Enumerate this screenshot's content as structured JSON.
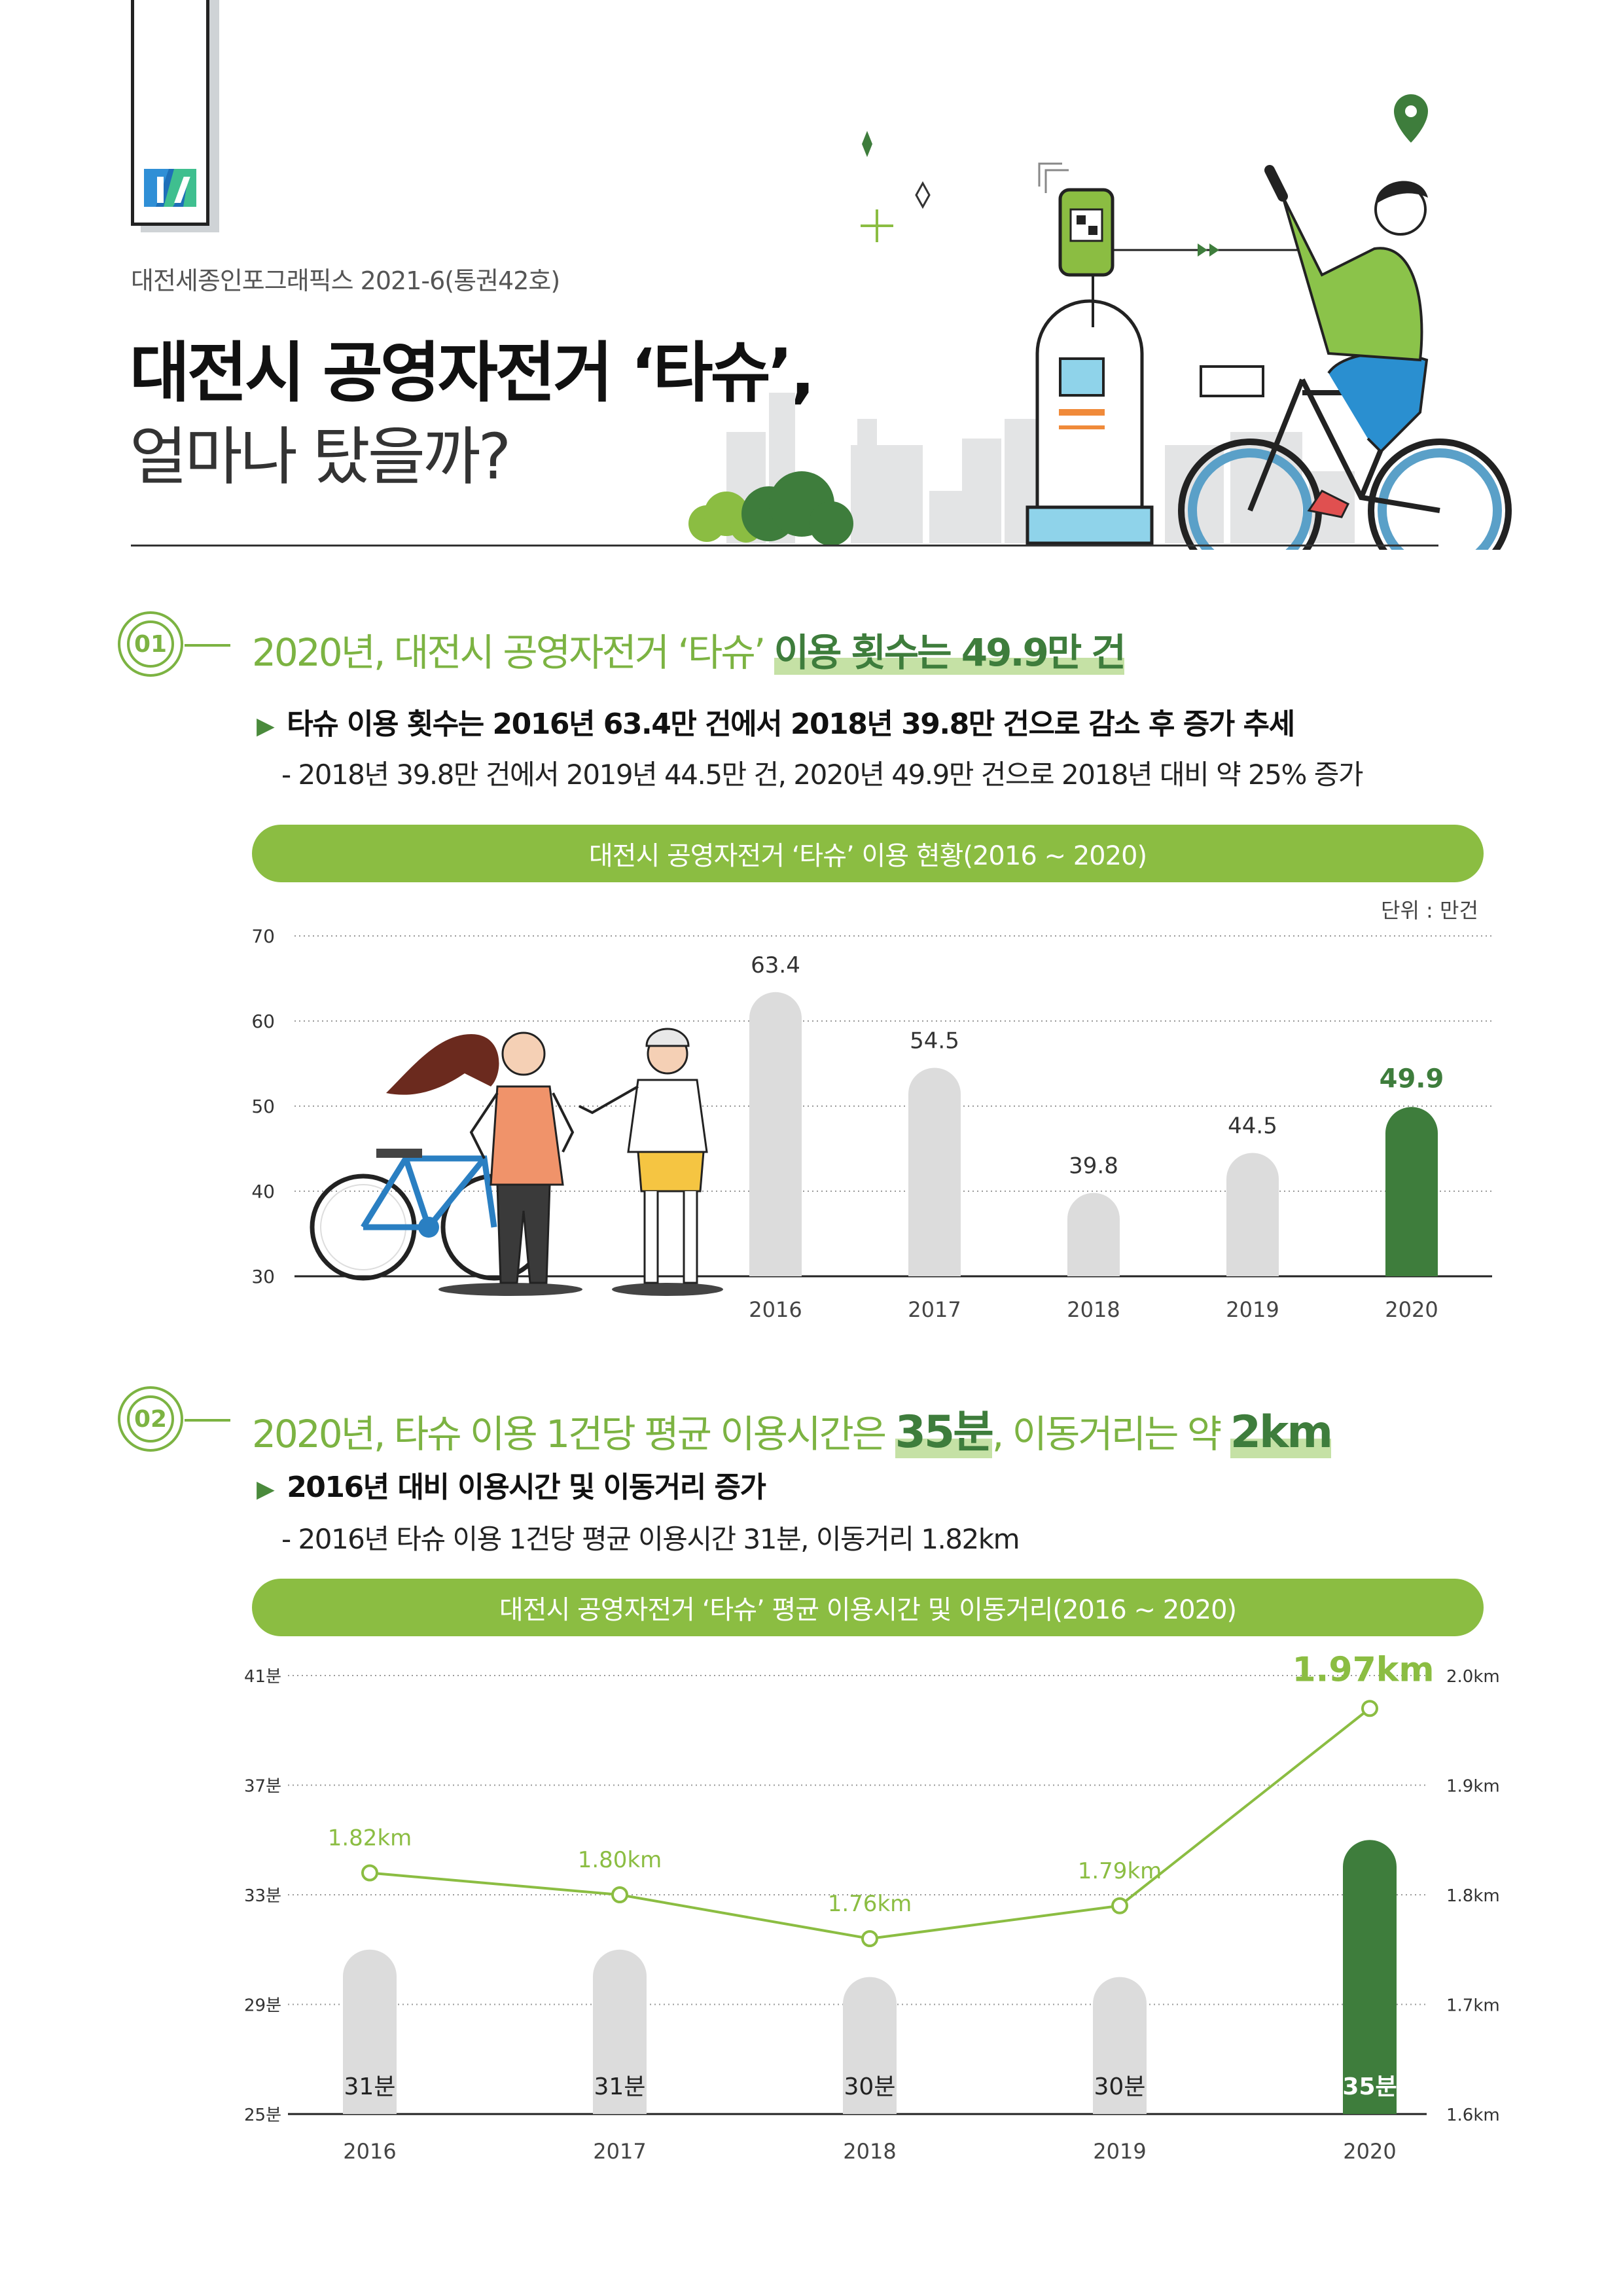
{
  "header": {
    "subtitle": "대전세종인포그래픽스 2021-6(통권42호)",
    "title_line1": "대전시 공영자전거 ‘타슈’,",
    "title_line2": "얼마나 탔을까?"
  },
  "colors": {
    "accent": "#8bbd42",
    "dark_green": "#3e7d3c",
    "bar_grey": "#dcdcdc",
    "line_green": "#8bbd42"
  },
  "section1": {
    "number": "01",
    "title_pre": "2020년, 대전시 공영자전거 ‘타슈’ ",
    "title_highlight": "이용 횟수는 49.9만 건",
    "bullet": "타슈 이용 횟수는 2016년 63.4만 건에서 2018년 39.8만 건으로 감소 후 증가 추세",
    "detail": "- 2018년 39.8만 건에서 2019년 44.5만 건, 2020년 49.9만 건으로 2018년 대비 약 25% 증가",
    "chart_title": "대전시 공영자전거 ‘타슈’ 이용 현황(2016 ~ 2020)",
    "unit": "단위 : 만건"
  },
  "section2": {
    "number": "02",
    "title_pre": "2020년, 타슈 이용 1건당 평균 이용시간은 ",
    "title_hl1": "35분",
    "title_mid": ", 이동거리는 약 ",
    "title_hl2": "2km",
    "bullet": "2016년 대비 이용시간 및 이동거리 증가",
    "detail": "- 2016년 타슈 이용 1건당 평균 이용시간 31분, 이동거리 1.82km",
    "chart_title": "대전시 공영자전거 ‘타슈’ 평균 이용시간 및 이동거리(2016 ~ 2020)"
  },
  "chart_data": [
    {
      "type": "bar",
      "title": "대전시 공영자전거 ‘타슈’ 이용 현황(2016 ~ 2020)",
      "categories": [
        "2016",
        "2017",
        "2018",
        "2019",
        "2020"
      ],
      "values": [
        63.4,
        54.5,
        39.8,
        44.5,
        49.9
      ],
      "value_labels": [
        "63.4",
        "54.5",
        "39.8",
        "44.5",
        "49.9"
      ],
      "ylim": [
        30,
        70
      ],
      "yticks": [
        "30",
        "40",
        "50",
        "60",
        "70"
      ],
      "unit": "단위 : 만건",
      "highlight_index": 4,
      "grid": true
    },
    {
      "type": "bar",
      "title": "대전시 공영자전거 ‘타슈’ 평균 이용시간 및 이동거리(2016 ~ 2020)",
      "categories": [
        "2016",
        "2017",
        "2018",
        "2019",
        "2020"
      ],
      "series": [
        {
          "name": "평균 이용시간",
          "type": "bar",
          "values": [
            31,
            31,
            30,
            30,
            35
          ],
          "labels": [
            "31분",
            "31분",
            "30분",
            "30분",
            "35분"
          ],
          "axis": "left"
        },
        {
          "name": "이동거리",
          "type": "line",
          "values": [
            1.82,
            1.8,
            1.76,
            1.79,
            1.97
          ],
          "labels": [
            "1.82km",
            "1.80km",
            "1.76km",
            "1.79km",
            "1.97km"
          ],
          "axis": "right"
        }
      ],
      "ylim_left": [
        25,
        41
      ],
      "yticks_left": [
        "25분",
        "29분",
        "33분",
        "37분",
        "41분"
      ],
      "ylim_right": [
        1.6,
        2.0
      ],
      "yticks_right": [
        "1.6km",
        "1.7km",
        "1.8km",
        "1.9km",
        "2.0km"
      ],
      "highlight_index": 4,
      "grid": true
    }
  ]
}
